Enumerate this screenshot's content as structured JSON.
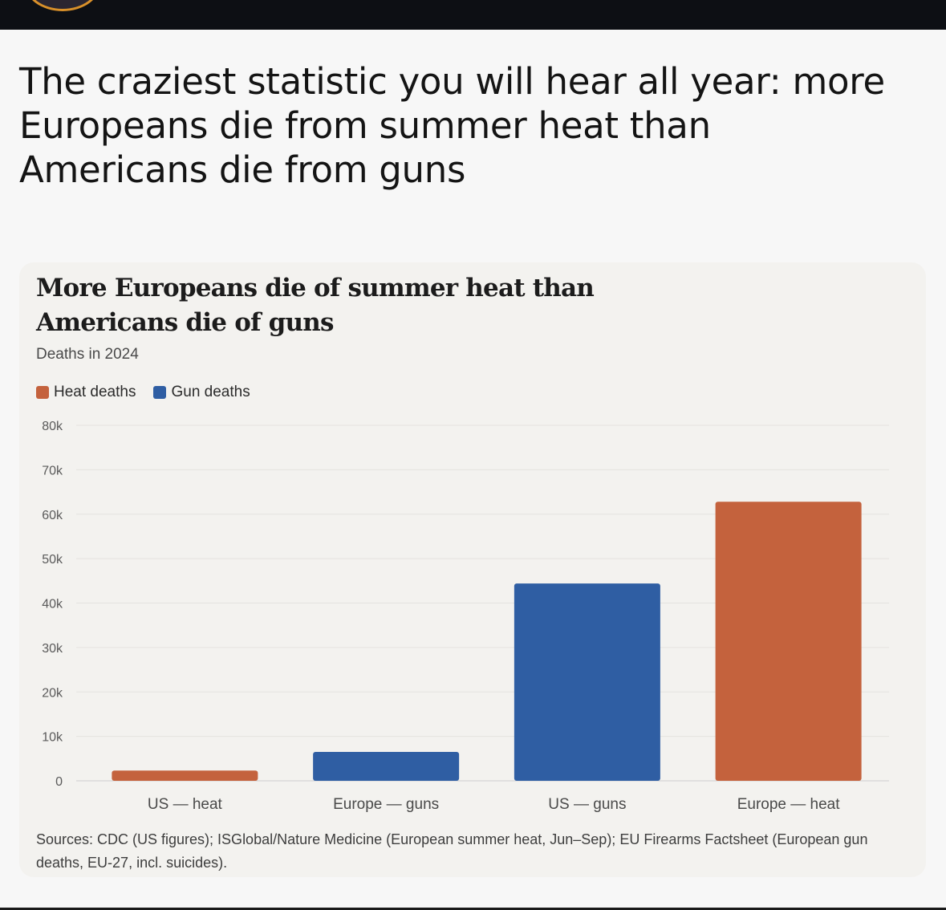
{
  "post": {
    "text": "The craziest statistic you will hear all year: more Europeans die from summer heat than Americans die from guns"
  },
  "colors": {
    "heat": "#c4623d",
    "guns": "#2f5ea3"
  },
  "chart_data": {
    "type": "bar",
    "title": "More Europeans die of summer heat than Americans die of guns",
    "subtitle": "Deaths in 2024",
    "legend": [
      {
        "name": "Heat deaths",
        "color": "#c4623d"
      },
      {
        "name": "Gun deaths",
        "color": "#2f5ea3"
      }
    ],
    "legend_position": "top-left",
    "categories": [
      "US — heat",
      "Europe — guns",
      "US — guns",
      "Europe — heat"
    ],
    "values": [
      2300,
      6500,
      44400,
      62800
    ],
    "series_type": [
      "Heat deaths",
      "Gun deaths",
      "Gun deaths",
      "Heat deaths"
    ],
    "ylim": [
      0,
      80000
    ],
    "yticks": [
      0,
      10000,
      20000,
      30000,
      40000,
      50000,
      60000,
      70000,
      80000
    ],
    "ytick_labels": [
      "0",
      "10k",
      "20k",
      "30k",
      "40k",
      "50k",
      "60k",
      "70k",
      "80k"
    ],
    "grid": true,
    "xlabel": "",
    "ylabel": "",
    "sources": "Sources: CDC (US figures); ISGlobal/Nature Medicine (European summer heat, Jun–Sep); EU Firearms Factsheet (European gun deaths, EU-27, incl. suicides)."
  }
}
